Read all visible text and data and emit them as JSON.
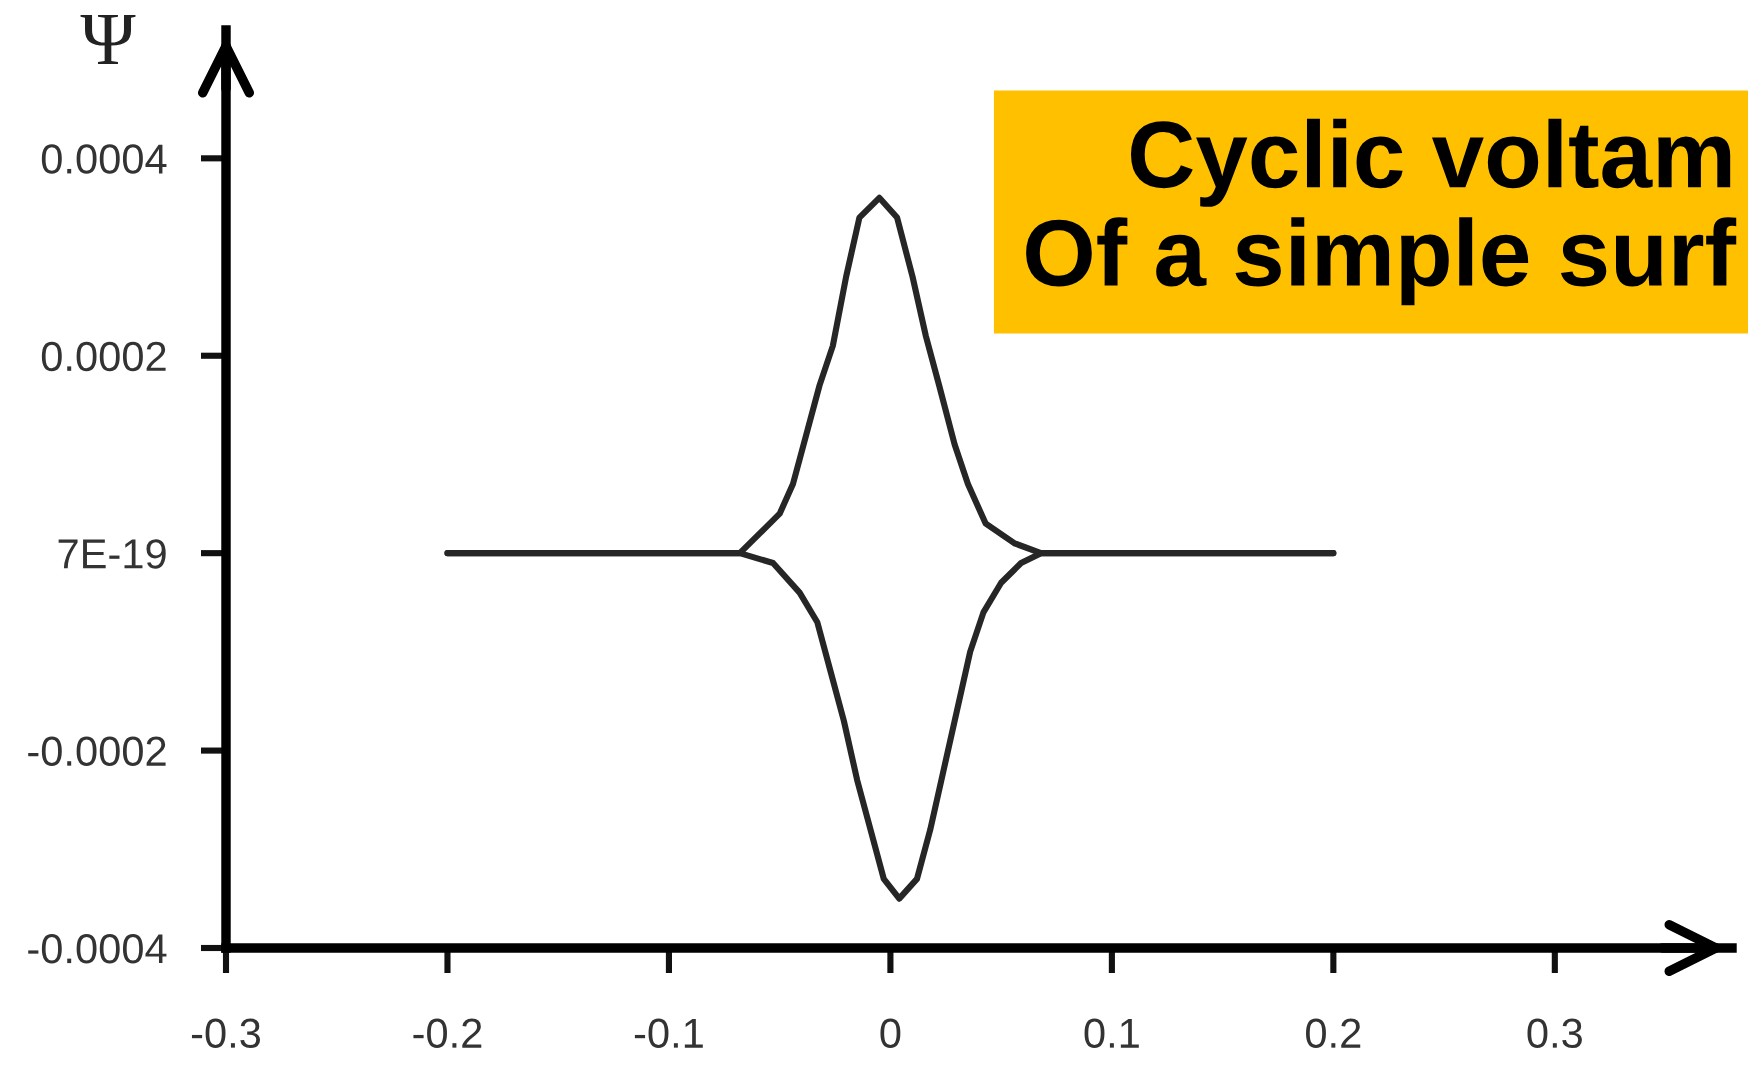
{
  "chart_data": {
    "type": "line",
    "title": "Cyclic voltam\nOf a simple surf",
    "ylabel": "Ψ",
    "series": [
      {
        "color": "#262626",
        "x": [
          -0.2,
          -0.068,
          -0.059,
          -0.05,
          -0.044,
          -0.038,
          -0.032,
          -0.026,
          -0.02,
          -0.014,
          -0.005,
          0.003,
          0.01,
          0.016,
          0.022,
          0.029,
          0.035,
          0.043,
          0.056,
          0.068,
          0.2
        ],
        "values": [
          0,
          0,
          2e-05,
          4e-05,
          7e-05,
          0.00012,
          0.00017,
          0.00021,
          0.00028,
          0.00034,
          0.00036,
          0.00034,
          0.00028,
          0.00022,
          0.00017,
          0.00011,
          7e-05,
          3e-05,
          1e-05,
          0,
          0
        ]
      },
      {
        "color": "#262626",
        "x": [
          -0.2,
          -0.068,
          -0.053,
          -0.041,
          -0.033,
          -0.027,
          -0.021,
          -0.015,
          -0.009,
          -0.003,
          0.004,
          0.012,
          0.018,
          0.024,
          0.03,
          0.036,
          0.042,
          0.05,
          0.059,
          0.068,
          0.2
        ],
        "values": [
          0,
          0,
          -1e-05,
          -4e-05,
          -7e-05,
          -0.00012,
          -0.00017,
          -0.00023,
          -0.00028,
          -0.00033,
          -0.00035,
          -0.00033,
          -0.00028,
          -0.00022,
          -0.00016,
          -0.0001,
          -6e-05,
          -3e-05,
          -1e-05,
          0,
          0
        ]
      }
    ],
    "xlim": [
      -0.3,
      0.38
    ],
    "xticks": [
      -0.3,
      -0.2,
      -0.1,
      0,
      0.1,
      0.2,
      0.3
    ],
    "ylim": [
      -0.0004,
      0.00053
    ],
    "yticks": [
      -0.0004,
      -0.0002,
      {
        "value": 7e-19,
        "label": "7E-19"
      },
      0.0002,
      0.0004
    ]
  }
}
